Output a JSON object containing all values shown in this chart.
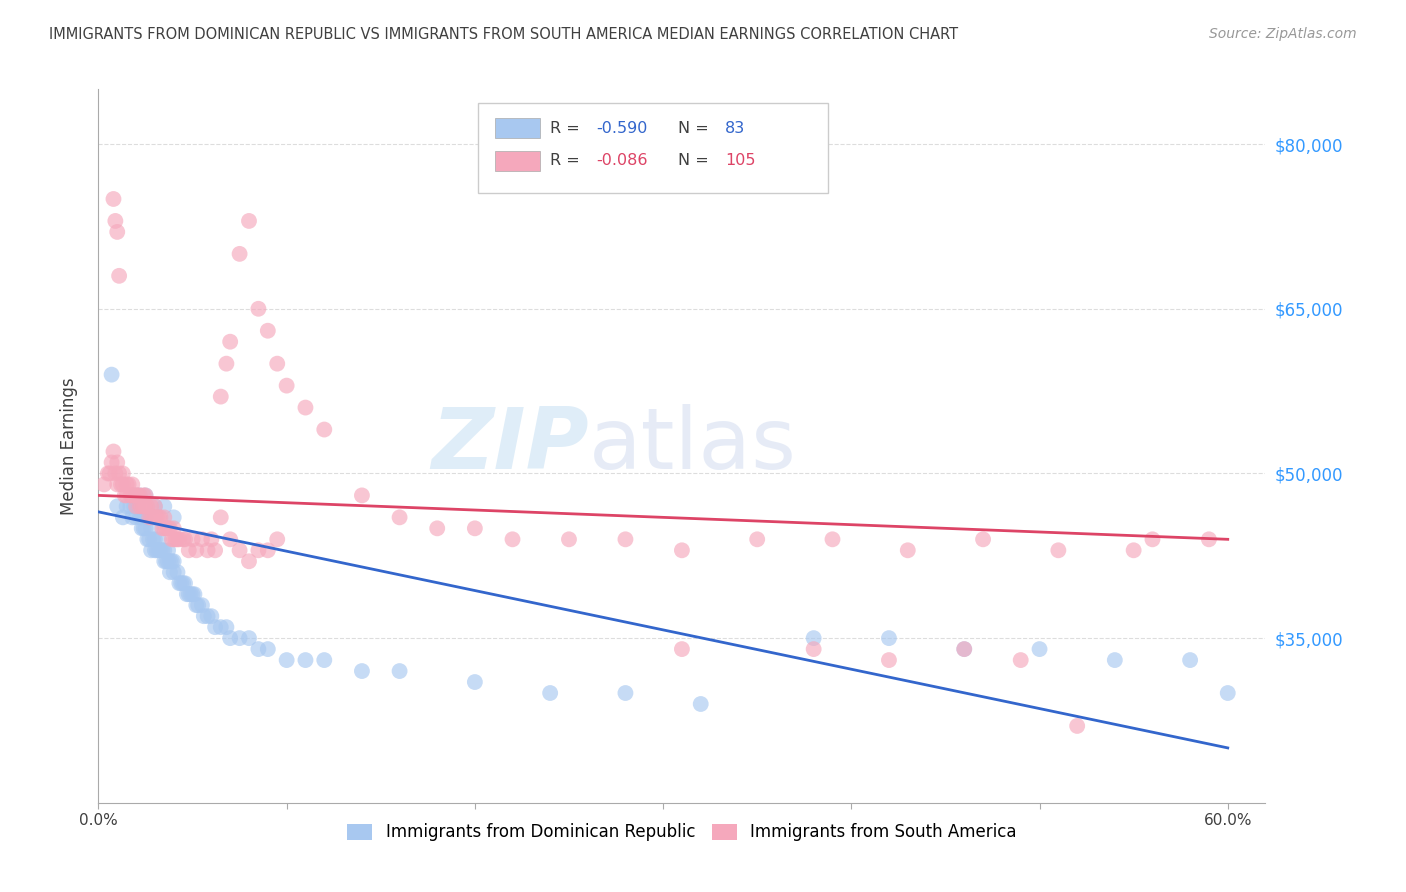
{
  "title": "IMMIGRANTS FROM DOMINICAN REPUBLIC VS IMMIGRANTS FROM SOUTH AMERICA MEDIAN EARNINGS CORRELATION CHART",
  "source": "Source: ZipAtlas.com",
  "ylabel": "Median Earnings",
  "watermark_zip": "ZIP",
  "watermark_atlas": "atlas",
  "legend_blue_r": "-0.590",
  "legend_blue_n": "83",
  "legend_pink_r": "-0.086",
  "legend_pink_n": "105",
  "legend_blue_label": "Immigrants from Dominican Republic",
  "legend_pink_label": "Immigrants from South America",
  "yticks": [
    35000,
    50000,
    65000,
    80000
  ],
  "ytick_labels": [
    "$35,000",
    "$50,000",
    "$65,000",
    "$80,000"
  ],
  "xlim": [
    0.0,
    0.62
  ],
  "ylim": [
    20000,
    85000
  ],
  "blue_color": "#a8c8f0",
  "pink_color": "#f5a8bc",
  "blue_line_color": "#3366cc",
  "pink_line_color": "#dd4466",
  "background_color": "#ffffff",
  "grid_color": "#dddddd",
  "title_color": "#404040",
  "right_axis_color": "#3399ff",
  "blue_scatter_x": [
    0.007,
    0.01,
    0.013,
    0.015,
    0.017,
    0.018,
    0.019,
    0.02,
    0.021,
    0.022,
    0.022,
    0.023,
    0.023,
    0.024,
    0.025,
    0.025,
    0.026,
    0.027,
    0.028,
    0.028,
    0.029,
    0.03,
    0.03,
    0.031,
    0.032,
    0.032,
    0.033,
    0.034,
    0.035,
    0.035,
    0.036,
    0.037,
    0.037,
    0.038,
    0.038,
    0.039,
    0.04,
    0.04,
    0.042,
    0.043,
    0.044,
    0.045,
    0.046,
    0.047,
    0.048,
    0.049,
    0.05,
    0.051,
    0.052,
    0.053,
    0.055,
    0.056,
    0.058,
    0.06,
    0.062,
    0.065,
    0.068,
    0.07,
    0.075,
    0.08,
    0.085,
    0.09,
    0.1,
    0.11,
    0.12,
    0.14,
    0.16,
    0.2,
    0.24,
    0.28,
    0.32,
    0.38,
    0.42,
    0.46,
    0.5,
    0.54,
    0.58,
    0.6,
    0.02,
    0.025,
    0.03,
    0.035,
    0.04
  ],
  "blue_scatter_y": [
    59000,
    47000,
    46000,
    47000,
    47000,
    46000,
    47000,
    46000,
    47000,
    46000,
    48000,
    45000,
    46000,
    45000,
    45000,
    46000,
    44000,
    44000,
    43000,
    45000,
    44000,
    43000,
    44000,
    43000,
    43000,
    44000,
    43000,
    43000,
    42000,
    43000,
    42000,
    42000,
    43000,
    41000,
    42000,
    42000,
    41000,
    42000,
    41000,
    40000,
    40000,
    40000,
    40000,
    39000,
    39000,
    39000,
    39000,
    39000,
    38000,
    38000,
    38000,
    37000,
    37000,
    37000,
    36000,
    36000,
    36000,
    35000,
    35000,
    35000,
    34000,
    34000,
    33000,
    33000,
    33000,
    32000,
    32000,
    31000,
    30000,
    30000,
    29000,
    35000,
    35000,
    34000,
    34000,
    33000,
    33000,
    30000,
    48000,
    48000,
    47000,
    47000,
    46000
  ],
  "pink_scatter_x": [
    0.003,
    0.005,
    0.006,
    0.007,
    0.008,
    0.009,
    0.01,
    0.01,
    0.011,
    0.012,
    0.013,
    0.013,
    0.014,
    0.015,
    0.015,
    0.016,
    0.017,
    0.018,
    0.018,
    0.019,
    0.02,
    0.02,
    0.021,
    0.022,
    0.022,
    0.023,
    0.024,
    0.024,
    0.025,
    0.025,
    0.026,
    0.027,
    0.028,
    0.028,
    0.029,
    0.03,
    0.03,
    0.031,
    0.032,
    0.033,
    0.034,
    0.035,
    0.035,
    0.036,
    0.037,
    0.038,
    0.039,
    0.04,
    0.04,
    0.041,
    0.042,
    0.043,
    0.045,
    0.046,
    0.048,
    0.05,
    0.052,
    0.055,
    0.058,
    0.06,
    0.062,
    0.065,
    0.068,
    0.07,
    0.075,
    0.08,
    0.085,
    0.09,
    0.095,
    0.1,
    0.11,
    0.12,
    0.14,
    0.16,
    0.18,
    0.2,
    0.22,
    0.25,
    0.28,
    0.31,
    0.35,
    0.39,
    0.43,
    0.47,
    0.51,
    0.55,
    0.59,
    0.008,
    0.009,
    0.01,
    0.011,
    0.065,
    0.07,
    0.075,
    0.08,
    0.085,
    0.09,
    0.095,
    0.31,
    0.38,
    0.42,
    0.46,
    0.49,
    0.52,
    0.56
  ],
  "pink_scatter_y": [
    49000,
    50000,
    50000,
    51000,
    52000,
    50000,
    49000,
    51000,
    50000,
    49000,
    50000,
    49000,
    48000,
    48000,
    49000,
    49000,
    48000,
    49000,
    48000,
    48000,
    47000,
    48000,
    48000,
    47000,
    48000,
    47000,
    47000,
    48000,
    47000,
    48000,
    47000,
    46000,
    46000,
    47000,
    46000,
    46000,
    47000,
    46000,
    46000,
    46000,
    45000,
    45000,
    46000,
    45000,
    45000,
    45000,
    44000,
    44000,
    45000,
    44000,
    44000,
    44000,
    44000,
    44000,
    43000,
    44000,
    43000,
    44000,
    43000,
    44000,
    43000,
    57000,
    60000,
    62000,
    70000,
    73000,
    65000,
    63000,
    60000,
    58000,
    56000,
    54000,
    48000,
    46000,
    45000,
    45000,
    44000,
    44000,
    44000,
    43000,
    44000,
    44000,
    43000,
    44000,
    43000,
    43000,
    44000,
    75000,
    73000,
    72000,
    68000,
    46000,
    44000,
    43000,
    42000,
    43000,
    43000,
    44000,
    34000,
    34000,
    33000,
    34000,
    33000,
    27000,
    44000
  ]
}
